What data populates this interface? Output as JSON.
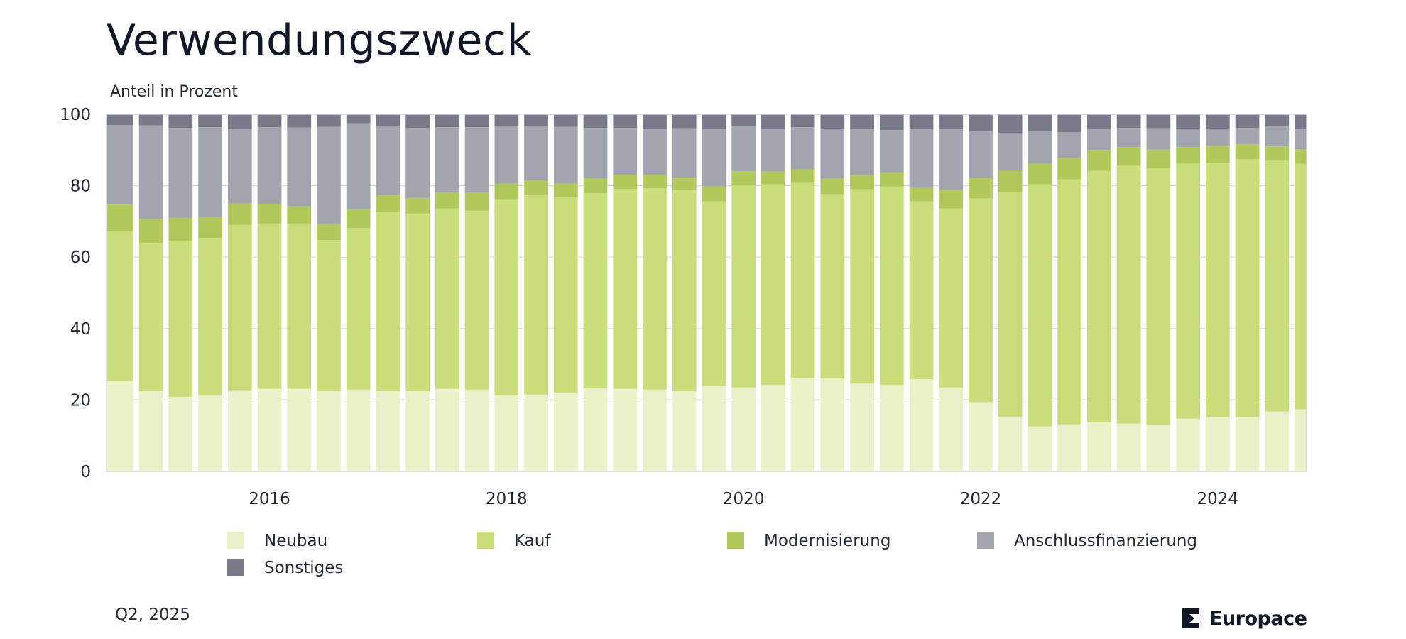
{
  "title": "Verwendungszweck",
  "footnote": "Q2, 2025",
  "brand": "Europace",
  "chart_data": {
    "type": "bar",
    "stacked": true,
    "ylabel": "Anteil in Prozent",
    "ylim": [
      0,
      100
    ],
    "yticks": [
      0,
      20,
      40,
      60,
      80,
      100
    ],
    "grid": true,
    "legend_position": "bottom",
    "x_period_start": "2015 Q1",
    "x_ticks": [
      {
        "label": "2016",
        "position": 5
      },
      {
        "label": "2018",
        "position": 13
      },
      {
        "label": "2020",
        "position": 21
      },
      {
        "label": "2022",
        "position": 29
      },
      {
        "label": "2024",
        "position": 37
      }
    ],
    "series": [
      {
        "name": "Neubau",
        "color": "#e9f1c9",
        "values": [
          25.3,
          22.5,
          20.9,
          21.3,
          22.7,
          23.1,
          23.1,
          22.5,
          22.9,
          22.5,
          22.5,
          23.1,
          22.9,
          21.3,
          21.5,
          22.1,
          23.3,
          23.1,
          22.9,
          22.5,
          24.0,
          23.5,
          24.2,
          26.2,
          26.0,
          24.6,
          24.2,
          25.8,
          23.5,
          19.4,
          15.3,
          12.6,
          13.2,
          13.8,
          13.4,
          13.0,
          14.8,
          15.2,
          15.2,
          16.8,
          17.4
        ]
      },
      {
        "name": "Kauf",
        "color": "#c9de7a",
        "values": [
          41.9,
          41.5,
          43.7,
          44.1,
          46.3,
          46.3,
          46.3,
          42.3,
          45.3,
          50.1,
          49.7,
          50.5,
          50.1,
          54.9,
          56.0,
          54.7,
          54.6,
          56.0,
          56.4,
          56.2,
          51.6,
          56.6,
          56.2,
          54.6,
          51.6,
          54.4,
          55.6,
          49.8,
          50.1,
          57.0,
          62.9,
          67.8,
          68.6,
          70.4,
          72.2,
          71.9,
          71.4,
          71.2,
          72.2,
          70.2,
          68.8
        ]
      },
      {
        "name": "Modernisierung",
        "color": "#b1c95a",
        "values": [
          7.5,
          6.7,
          6.4,
          5.8,
          6.0,
          5.5,
          4.8,
          4.6,
          5.2,
          4.8,
          4.4,
          4.4,
          5.0,
          4.4,
          4.0,
          3.8,
          4.2,
          4.0,
          3.8,
          3.6,
          4.2,
          4.0,
          3.6,
          3.8,
          4.4,
          4.0,
          4.0,
          3.8,
          5.2,
          5.8,
          6.0,
          5.8,
          6.0,
          5.8,
          5.2,
          5.2,
          4.6,
          4.8,
          4.2,
          4.0,
          4.0
        ]
      },
      {
        "name": "Anschlussfinanzierung",
        "color": "#a2a4ae",
        "values": [
          22.3,
          26.2,
          25.2,
          25.2,
          20.9,
          21.5,
          22.1,
          27.1,
          24.1,
          19.4,
          19.6,
          18.4,
          18.4,
          16.2,
          15.3,
          15.9,
          14.1,
          13.1,
          12.7,
          13.8,
          16.0,
          12.6,
          11.8,
          11.8,
          14.0,
          12.8,
          11.8,
          16.4,
          17.0,
          13.0,
          10.6,
          9.0,
          7.2,
          5.8,
          5.4,
          6.0,
          5.2,
          4.8,
          4.6,
          5.6,
          5.6
        ]
      },
      {
        "name": "Sonstiges",
        "color": "#787a89",
        "values": [
          3.0,
          3.1,
          3.8,
          3.6,
          4.1,
          3.6,
          3.7,
          3.5,
          2.5,
          3.2,
          3.8,
          3.6,
          3.6,
          3.2,
          3.2,
          3.5,
          3.8,
          3.8,
          4.2,
          3.9,
          4.2,
          3.3,
          4.2,
          3.6,
          4.0,
          4.2,
          4.4,
          4.2,
          4.2,
          4.8,
          5.2,
          4.8,
          5.0,
          4.2,
          3.8,
          3.9,
          4.0,
          4.0,
          3.8,
          3.4,
          4.2
        ]
      }
    ]
  }
}
